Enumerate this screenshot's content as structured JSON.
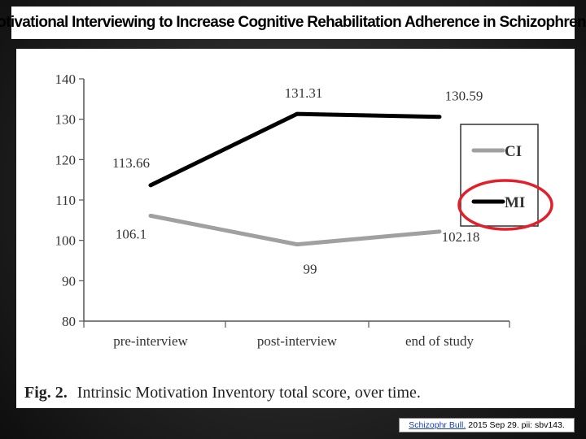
{
  "slide": {
    "title": "Motivational Interviewing to Increase Cognitive Rehabilitation Adherence in Schizophrenia."
  },
  "caption": {
    "label": "Fig. 2.",
    "text": "Intrinsic Motivation Inventory total score, over time."
  },
  "citation": {
    "journal": "Schizophr Bull.",
    "rest": "2015 Sep 29. pii: sbv143."
  },
  "colors": {
    "ci": "#a0a0a0",
    "mi": "#000000",
    "highlight": "#e0202a",
    "axis": "#555555"
  },
  "chart_data": {
    "type": "line",
    "categories": [
      "pre-interview",
      "post-interview",
      "end of study"
    ],
    "ylim": [
      80,
      140
    ],
    "yticks": [
      "80",
      "90",
      "100",
      "110",
      "120",
      "130",
      "140"
    ],
    "series": [
      {
        "name": "CI",
        "values": [
          106.1,
          99,
          102.18
        ],
        "labels": [
          "106.1",
          "99",
          "102.18"
        ]
      },
      {
        "name": "MI",
        "values": [
          113.66,
          131.31,
          130.59
        ],
        "labels": [
          "113.66",
          "131.31",
          "130.59"
        ]
      }
    ],
    "legend": "right",
    "grid": false,
    "annotation": "red circle around MI legend entry"
  }
}
